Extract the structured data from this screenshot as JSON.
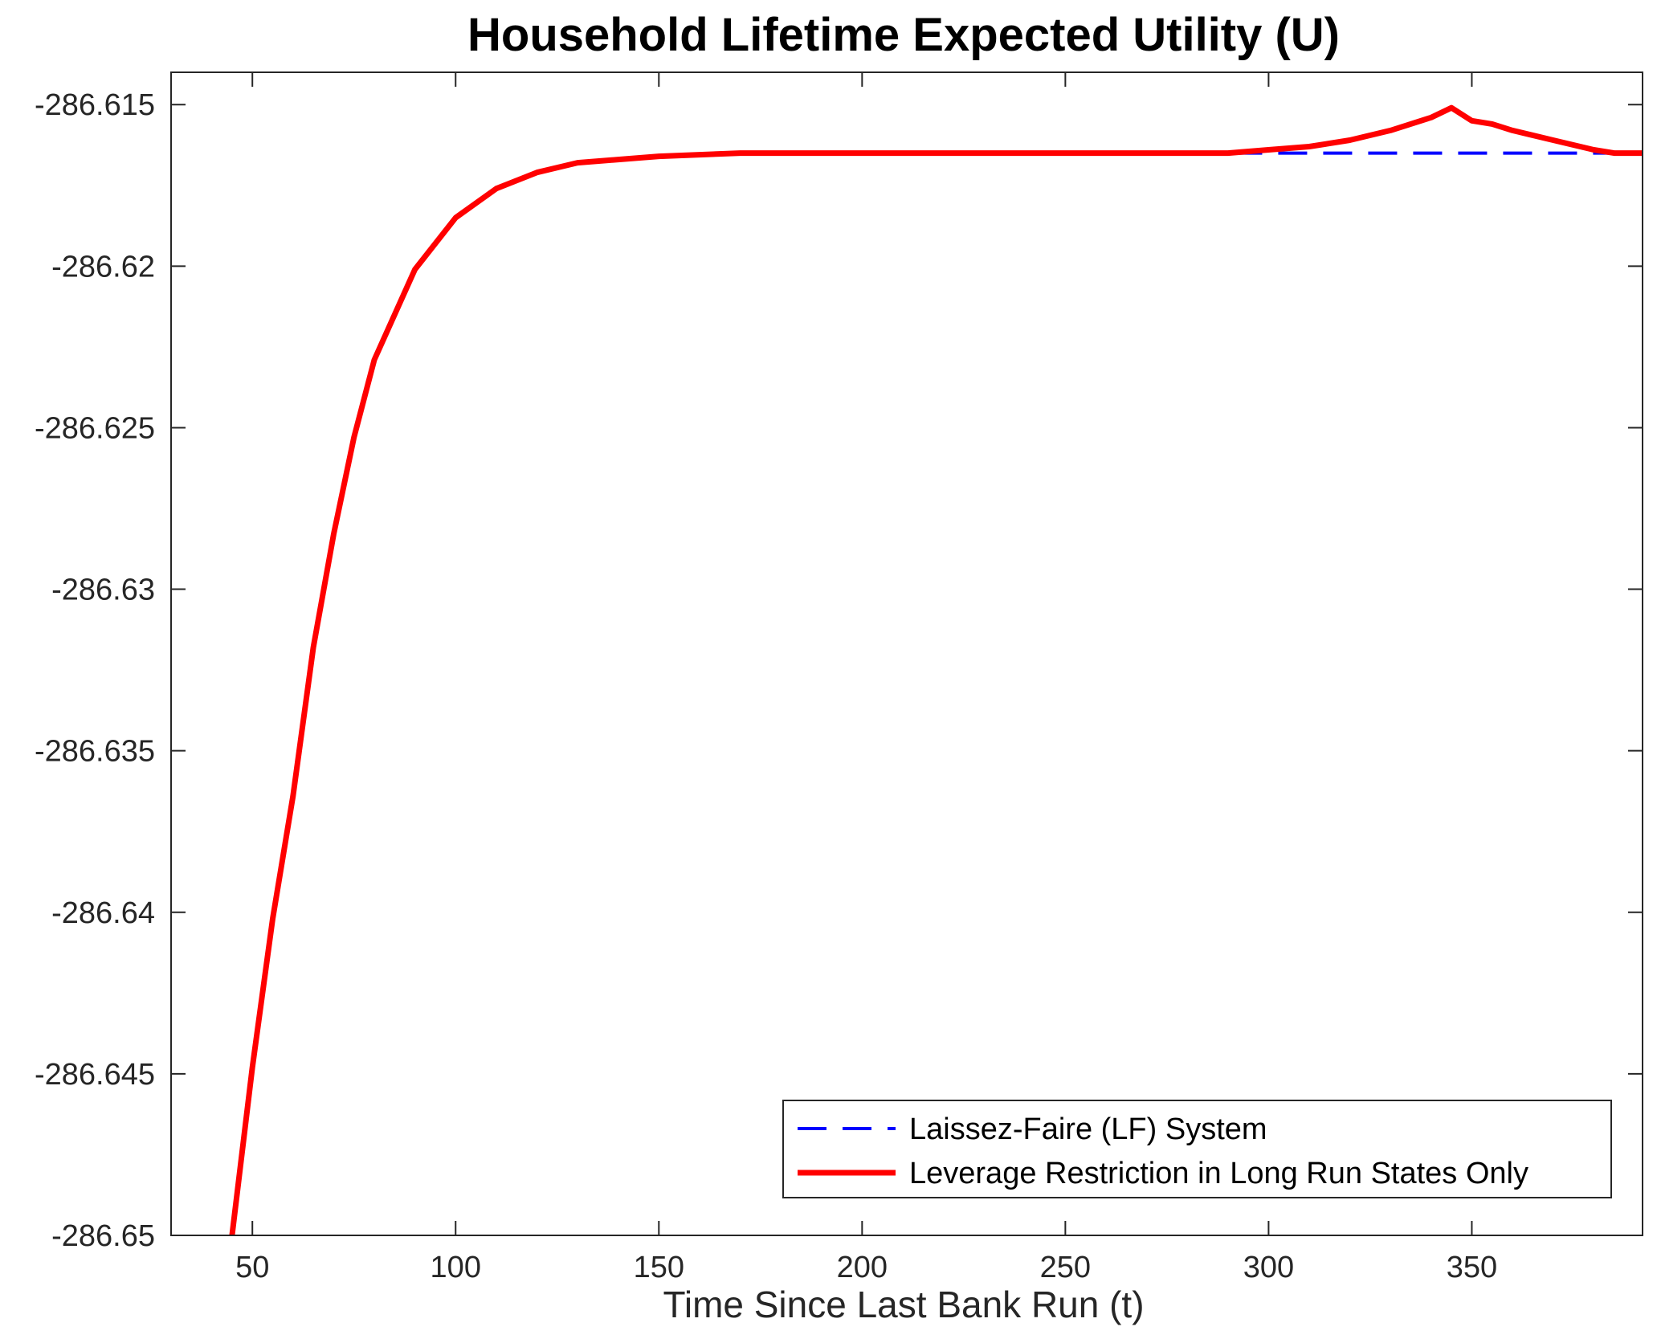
{
  "chart_data": {
    "type": "line",
    "title": "Household Lifetime Expected Utility (U)",
    "xlabel": "Time Since Last Bank Run (t)",
    "ylabel": "",
    "xlim": [
      30,
      392
    ],
    "ylim": [
      -286.65,
      -286.614
    ],
    "xticks": [
      50,
      100,
      150,
      200,
      250,
      300,
      350
    ],
    "xtick_labels": [
      "50",
      "100",
      "150",
      "200",
      "250",
      "300",
      "350"
    ],
    "yticks": [
      -286.615,
      -286.62,
      -286.625,
      -286.63,
      -286.635,
      -286.64,
      -286.645,
      -286.65
    ],
    "ytick_labels": [
      "-286.615",
      "-286.62",
      "-286.625",
      "-286.63",
      "-286.635",
      "-286.64",
      "-286.645",
      "-286.65"
    ],
    "grid": false,
    "legend_position": "bottom-right",
    "series": [
      {
        "name": "Laissez-Faire (LF) System",
        "color": "#0000ff",
        "style": "dashed",
        "x": [
          45,
          50,
          55,
          60,
          65,
          70,
          75,
          80,
          90,
          100,
          110,
          120,
          130,
          140,
          150,
          170,
          200,
          250,
          300,
          350,
          392
        ],
        "y": [
          -286.65,
          -286.6448,
          -286.6402,
          -286.6364,
          -286.6318,
          -286.6283,
          -286.6253,
          -286.6229,
          -286.6201,
          -286.6185,
          -286.6176,
          -286.6171,
          -286.6168,
          -286.6167,
          -286.6166,
          -286.6165,
          -286.6165,
          -286.6165,
          -286.6165,
          -286.6165,
          -286.6165
        ]
      },
      {
        "name": "Leverage Restriction in Long Run States Only",
        "color": "#ff0000",
        "style": "solid",
        "x": [
          45,
          50,
          55,
          60,
          65,
          70,
          75,
          80,
          90,
          100,
          110,
          120,
          130,
          140,
          150,
          170,
          200,
          250,
          290,
          300,
          310,
          320,
          330,
          340,
          345,
          350,
          355,
          360,
          370,
          380,
          385,
          392
        ],
        "y": [
          -286.65,
          -286.6448,
          -286.6402,
          -286.6364,
          -286.6318,
          -286.6283,
          -286.6253,
          -286.6229,
          -286.6201,
          -286.6185,
          -286.6176,
          -286.6171,
          -286.6168,
          -286.6167,
          -286.6166,
          -286.6165,
          -286.6165,
          -286.6165,
          -286.6165,
          -286.6164,
          -286.6163,
          -286.6161,
          -286.6158,
          -286.6154,
          -286.6151,
          -286.6155,
          -286.6156,
          -286.6158,
          -286.6161,
          -286.6164,
          -286.6165,
          -286.6165
        ]
      }
    ]
  }
}
